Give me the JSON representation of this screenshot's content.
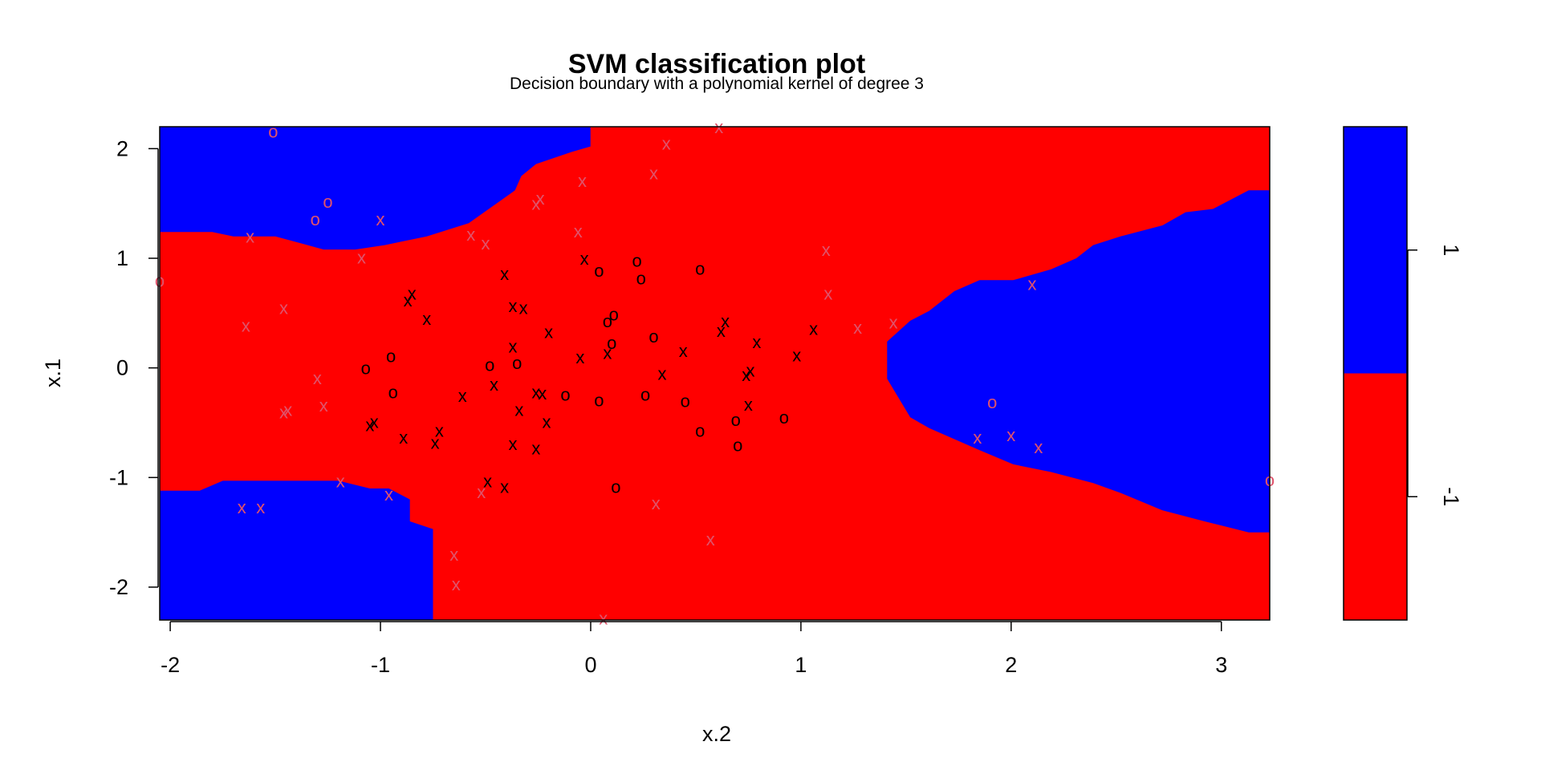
{
  "chart_data": {
    "type": "scatter",
    "title": "SVM classification plot",
    "subtitle": "Decision boundary with a polynomial kernel of degree 3",
    "xlabel": "x.2",
    "ylabel": "x.1",
    "xlim": [
      -2.05,
      3.23
    ],
    "ylim": [
      -2.3,
      2.2
    ],
    "x_ticks": [
      "-2",
      "-1",
      "0",
      "1",
      "2",
      "3"
    ],
    "y_ticks": [
      "-2",
      "-1",
      "0",
      "1",
      "2"
    ],
    "grid": false,
    "colors": {
      "class_1_region": "#0000ff",
      "class_neg1_region": "#ff0000",
      "support_vector": "#000000",
      "data_point": "#df536b"
    },
    "legend": {
      "placement": "right",
      "items": [
        {
          "label": "1",
          "color": "#0000ff"
        },
        {
          "label": "-1",
          "color": "#ff0000"
        }
      ]
    },
    "regions": [
      {
        "class": "1",
        "color": "#0000ff",
        "boundary": [
          [
            -2.05,
            2.2
          ],
          [
            -0.001,
            2.2
          ],
          [
            -0.001,
            2.02
          ],
          [
            -0.09,
            1.97
          ],
          [
            -0.26,
            1.86
          ],
          [
            -0.33,
            1.75
          ],
          [
            -0.36,
            1.62
          ],
          [
            -0.47,
            1.47
          ],
          [
            -0.58,
            1.32
          ],
          [
            -0.78,
            1.2
          ],
          [
            -0.98,
            1.12
          ],
          [
            -1.12,
            1.08
          ],
          [
            -1.27,
            1.08
          ],
          [
            -1.5,
            1.2
          ],
          [
            -1.7,
            1.2
          ],
          [
            -1.8,
            1.24
          ],
          [
            -2.05,
            1.24
          ]
        ]
      },
      {
        "class": "1",
        "color": "#0000ff",
        "boundary": [
          [
            -2.05,
            -1.12
          ],
          [
            -1.86,
            -1.12
          ],
          [
            -1.75,
            -1.03
          ],
          [
            -1.2,
            -1.03
          ],
          [
            -1.05,
            -1.1
          ],
          [
            -0.96,
            -1.1
          ],
          [
            -0.86,
            -1.2
          ],
          [
            -0.86,
            -1.4
          ],
          [
            -0.75,
            -1.47
          ],
          [
            -0.75,
            -2.3
          ],
          [
            -2.05,
            -2.3
          ]
        ]
      },
      {
        "class": "1",
        "color": "#0000ff",
        "boundary": [
          [
            1.41,
            0.24
          ],
          [
            1.52,
            0.43
          ],
          [
            1.61,
            0.52
          ],
          [
            1.73,
            0.7
          ],
          [
            1.85,
            0.8
          ],
          [
            2.01,
            0.8
          ],
          [
            2.19,
            0.9
          ],
          [
            2.31,
            1.0
          ],
          [
            2.39,
            1.12
          ],
          [
            2.52,
            1.2
          ],
          [
            2.72,
            1.3
          ],
          [
            2.83,
            1.42
          ],
          [
            2.96,
            1.45
          ],
          [
            3.13,
            1.62
          ],
          [
            3.23,
            1.62
          ],
          [
            3.23,
            -1.5
          ],
          [
            3.13,
            -1.5
          ],
          [
            2.92,
            -1.4
          ],
          [
            2.72,
            -1.3
          ],
          [
            2.52,
            -1.14
          ],
          [
            2.39,
            -1.05
          ],
          [
            2.19,
            -0.95
          ],
          [
            2.01,
            -0.88
          ],
          [
            1.85,
            -0.75
          ],
          [
            1.73,
            -0.65
          ],
          [
            1.61,
            -0.55
          ],
          [
            1.52,
            -0.45
          ],
          [
            1.41,
            -0.1
          ]
        ]
      }
    ],
    "series": [
      {
        "marker": "x",
        "color": "#000000",
        "points": [
          [
            -0.85,
            0.68
          ],
          [
            -0.87,
            0.62
          ],
          [
            -0.78,
            0.45
          ],
          [
            -0.41,
            0.86
          ],
          [
            -0.37,
            0.57
          ],
          [
            -0.32,
            0.55
          ],
          [
            -0.2,
            0.33
          ],
          [
            -0.37,
            0.2
          ],
          [
            -1.03,
            -0.49
          ],
          [
            -1.05,
            -0.52
          ],
          [
            -0.89,
            -0.63
          ],
          [
            -0.72,
            -0.57
          ],
          [
            -0.74,
            -0.68
          ],
          [
            -0.61,
            -0.25
          ],
          [
            -0.46,
            -0.15
          ],
          [
            -0.34,
            -0.38
          ],
          [
            -0.26,
            -0.22
          ],
          [
            -0.23,
            -0.23
          ],
          [
            -0.21,
            -0.49
          ],
          [
            -0.37,
            -0.69
          ],
          [
            -0.26,
            -0.73
          ],
          [
            -0.49,
            -1.03
          ],
          [
            -0.41,
            -1.08
          ],
          [
            -0.05,
            0.1
          ],
          [
            -0.03,
            1.0
          ],
          [
            0.08,
            0.14
          ],
          [
            0.34,
            -0.05
          ],
          [
            0.44,
            0.16
          ],
          [
            0.62,
            0.34
          ],
          [
            0.64,
            0.43
          ],
          [
            0.74,
            -0.06
          ],
          [
            0.76,
            -0.02
          ],
          [
            0.75,
            -0.33
          ],
          [
            0.79,
            0.24
          ],
          [
            0.98,
            0.12
          ],
          [
            1.06,
            0.36
          ]
        ]
      },
      {
        "marker": "o",
        "color": "#000000",
        "points": [
          [
            -1.07,
            0.0
          ],
          [
            -0.95,
            0.11
          ],
          [
            -0.94,
            -0.22
          ],
          [
            -0.48,
            0.03
          ],
          [
            -0.35,
            0.05
          ],
          [
            -0.12,
            -0.24
          ],
          [
            0.04,
            0.89
          ],
          [
            0.04,
            -0.29
          ],
          [
            0.08,
            0.43
          ],
          [
            0.1,
            0.23
          ],
          [
            0.11,
            0.49
          ],
          [
            0.12,
            -1.08
          ],
          [
            0.22,
            0.98
          ],
          [
            0.24,
            0.82
          ],
          [
            0.26,
            -0.24
          ],
          [
            0.3,
            0.29
          ],
          [
            0.45,
            -0.3
          ],
          [
            0.52,
            0.91
          ],
          [
            0.52,
            -0.57
          ],
          [
            0.69,
            -0.47
          ],
          [
            0.7,
            -0.7
          ],
          [
            0.92,
            -0.45
          ]
        ]
      },
      {
        "marker": "x",
        "color": "#df536b",
        "points": [
          [
            -1.62,
            1.2
          ],
          [
            -1.0,
            1.36
          ],
          [
            -1.09,
            1.01
          ],
          [
            -0.57,
            1.22
          ],
          [
            -0.5,
            1.14
          ],
          [
            -0.26,
            1.5
          ],
          [
            -0.24,
            1.55
          ],
          [
            -0.06,
            1.25
          ],
          [
            -0.04,
            1.71
          ],
          [
            0.3,
            1.78
          ],
          [
            0.36,
            2.05
          ],
          [
            0.61,
            2.2
          ],
          [
            -1.46,
            0.55
          ],
          [
            -1.64,
            0.39
          ],
          [
            -1.3,
            -0.09
          ],
          [
            -1.27,
            -0.34
          ],
          [
            -1.46,
            -0.4
          ],
          [
            -1.44,
            -0.38
          ],
          [
            -1.19,
            -1.03
          ],
          [
            -0.96,
            -1.15
          ],
          [
            -1.66,
            -1.27
          ],
          [
            -1.57,
            -1.27
          ],
          [
            -0.52,
            -1.13
          ],
          [
            -0.65,
            -1.7
          ],
          [
            -0.64,
            -1.97
          ],
          [
            0.31,
            -1.23
          ],
          [
            0.57,
            -1.56
          ],
          [
            0.06,
            -2.28
          ],
          [
            1.12,
            1.08
          ],
          [
            1.13,
            0.68
          ],
          [
            1.27,
            0.37
          ],
          [
            1.44,
            0.42
          ],
          [
            2.1,
            0.77
          ],
          [
            1.84,
            -0.63
          ],
          [
            2.0,
            -0.61
          ],
          [
            2.13,
            -0.72
          ]
        ]
      },
      {
        "marker": "o",
        "color": "#df536b",
        "points": [
          [
            -1.51,
            2.16
          ],
          [
            -1.25,
            1.52
          ],
          [
            -1.31,
            1.36
          ],
          [
            -2.05,
            0.8
          ],
          [
            1.91,
            -0.31
          ],
          [
            3.23,
            -1.02
          ]
        ]
      }
    ]
  }
}
